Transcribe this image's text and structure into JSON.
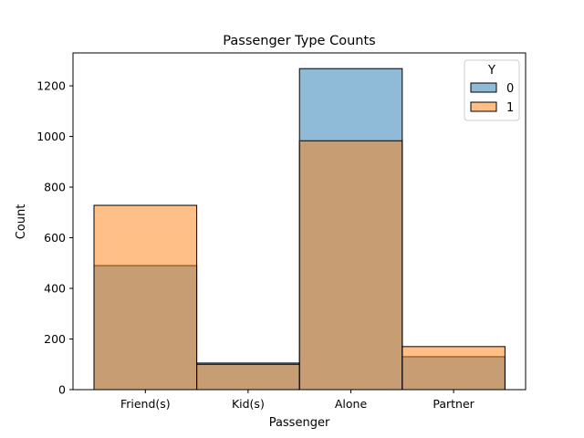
{
  "chart_data": {
    "type": "bar",
    "title": "Passenger Type Counts",
    "xlabel": "Passenger",
    "ylabel": "Count",
    "categories": [
      "Friend(s)",
      "Kid(s)",
      "Alone",
      "Partner"
    ],
    "series": [
      {
        "name": "0",
        "values": [
          490,
          105,
          1268,
          130
        ],
        "color": "#1f77b4"
      },
      {
        "name": "1",
        "values": [
          728,
          100,
          983,
          170
        ],
        "color": "#ff7f0e"
      }
    ],
    "yticks": [
      0,
      200,
      400,
      600,
      800,
      1000,
      1200
    ],
    "ylim": [
      0,
      1330
    ],
    "legend": {
      "title": "Y",
      "placement": "top-right"
    },
    "overlay": true,
    "grid": false
  }
}
